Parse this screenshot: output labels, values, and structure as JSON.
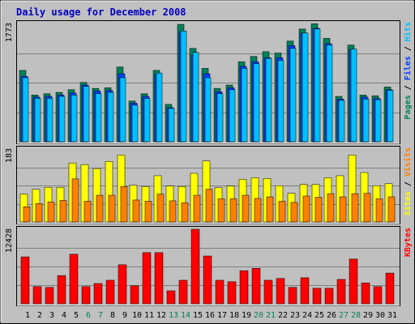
{
  "title": "Daily usage for December 2008",
  "colors": {
    "background": "#c0c0c0",
    "title": "#0000c0",
    "hits": "#00805c",
    "files": "#0040ff",
    "pages": "#00c0ff",
    "visits": "#ffff00",
    "sites": "#ff8000",
    "kbytes": "#ff0000",
    "weekend": "#00805c",
    "weekday": "#000000"
  },
  "chart_data": [
    {
      "type": "bar",
      "name": "hits-files-pages",
      "ymax_label": "1773",
      "ylim": [
        0,
        1773
      ],
      "right_label": [
        "Pages",
        "Files",
        "Hits"
      ],
      "categories": [
        "1",
        "2",
        "3",
        "4",
        "5",
        "6",
        "7",
        "8",
        "9",
        "10",
        "11",
        "12",
        "13",
        "14",
        "15",
        "16",
        "17",
        "18",
        "19",
        "20",
        "21",
        "22",
        "23",
        "24",
        "25",
        "26",
        "27",
        "28",
        "29",
        "30",
        "31"
      ],
      "series": [
        {
          "name": "Hits",
          "values": [
            1070,
            700,
            720,
            740,
            780,
            890,
            800,
            810,
            1120,
            610,
            720,
            1070,
            560,
            1760,
            1400,
            1100,
            800,
            850,
            1200,
            1280,
            1350,
            1330,
            1510,
            1690,
            1770,
            1550,
            680,
            1450,
            700,
            690,
            820
          ]
        },
        {
          "name": "Files",
          "values": [
            980,
            670,
            680,
            700,
            730,
            850,
            760,
            770,
            1020,
            580,
            680,
            1010,
            510,
            1650,
            1300,
            1020,
            750,
            810,
            1130,
            1200,
            1260,
            1260,
            1440,
            1630,
            1700,
            1470,
            640,
            1380,
            670,
            650,
            780
          ]
        },
        {
          "name": "Pages",
          "values": [
            960,
            650,
            650,
            680,
            700,
            830,
            720,
            740,
            960,
            550,
            650,
            1030,
            500,
            1660,
            1340,
            960,
            720,
            780,
            1100,
            1170,
            1250,
            1220,
            1400,
            1630,
            1690,
            1450,
            620,
            1390,
            640,
            630,
            770
          ]
        }
      ]
    },
    {
      "type": "bar",
      "name": "visits-sites",
      "ymax_label": "183",
      "ylim": [
        0,
        183
      ],
      "right_label": [
        "Sites",
        "Visits"
      ],
      "categories": [
        "1",
        "2",
        "3",
        "4",
        "5",
        "6",
        "7",
        "8",
        "9",
        "10",
        "11",
        "12",
        "13",
        "14",
        "15",
        "16",
        "17",
        "18",
        "19",
        "20",
        "21",
        "22",
        "23",
        "24",
        "25",
        "26",
        "27",
        "28",
        "29",
        "30",
        "31"
      ],
      "series": [
        {
          "name": "Visits",
          "values": [
            70,
            82,
            87,
            87,
            148,
            144,
            134,
            152,
            168,
            92,
            89,
            116,
            90,
            89,
            122,
            153,
            86,
            90,
            107,
            111,
            109,
            91,
            72,
            94,
            94,
            111,
            116,
            168,
            124,
            91,
            96
          ]
        },
        {
          "name": "Sites",
          "values": [
            38,
            46,
            50,
            54,
            108,
            52,
            67,
            67,
            89,
            55,
            52,
            70,
            53,
            48,
            67,
            82,
            58,
            58,
            67,
            59,
            63,
            52,
            49,
            65,
            62,
            71,
            63,
            71,
            72,
            58,
            63
          ]
        }
      ]
    },
    {
      "type": "bar",
      "name": "kbytes",
      "ymax_label": "12428",
      "ylim": [
        0,
        12428
      ],
      "right_label": [
        "KBytes"
      ],
      "categories": [
        "1",
        "2",
        "3",
        "4",
        "5",
        "6",
        "7",
        "8",
        "9",
        "10",
        "11",
        "12",
        "13",
        "14",
        "15",
        "16",
        "17",
        "18",
        "19",
        "20",
        "21",
        "22",
        "23",
        "24",
        "25",
        "26",
        "27",
        "28",
        "29",
        "30",
        "31"
      ],
      "series": [
        {
          "name": "KBytes",
          "values": [
            7820,
            2860,
            2730,
            4710,
            8260,
            2860,
            3380,
            3920,
            6500,
            3000,
            8530,
            8530,
            2160,
            3920,
            12428,
            7970,
            3920,
            3670,
            5520,
            5900,
            3920,
            4210,
            2730,
            4340,
            2580,
            2580,
            4060,
            7450,
            3480,
            2860,
            5120
          ]
        }
      ]
    }
  ]
}
